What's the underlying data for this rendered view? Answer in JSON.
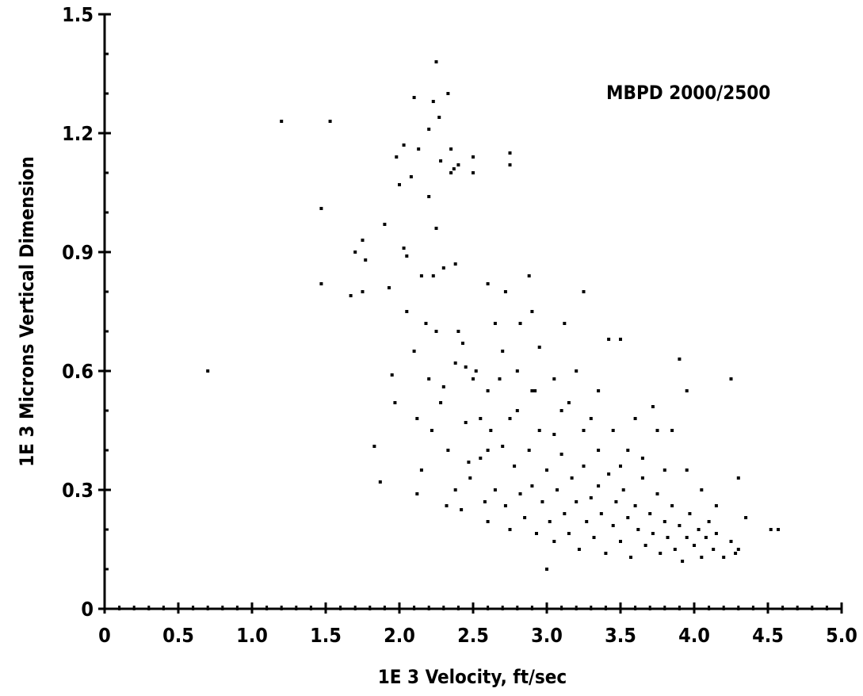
{
  "chart_data": {
    "type": "scatter",
    "xlabel": "1E 3 Velocity,  ft/sec",
    "ylabel": "1E 3 Microns Vertical Dimension",
    "annotation": "MBPD 2000/2500",
    "xlim": [
      0,
      5.0
    ],
    "ylim": [
      0,
      1.5
    ],
    "x_ticks": [
      "0",
      "0.5",
      "1.0",
      "1.5",
      "2.0",
      "2.5",
      "3.0",
      "3.5",
      "4.0",
      "4.5",
      "5.0"
    ],
    "y_ticks": [
      "0",
      "0.3",
      "0.6",
      "0.9",
      "1.2",
      "1.5"
    ],
    "grid": false,
    "point_color": "#000000",
    "points": [
      [
        0.7,
        0.6
      ],
      [
        1.2,
        1.23
      ],
      [
        1.53,
        1.23
      ],
      [
        1.47,
        1.01
      ],
      [
        1.47,
        0.82
      ],
      [
        1.7,
        0.9
      ],
      [
        1.75,
        0.93
      ],
      [
        1.77,
        0.88
      ],
      [
        1.67,
        0.79
      ],
      [
        1.75,
        0.8
      ],
      [
        1.83,
        0.41
      ],
      [
        1.87,
        0.32
      ],
      [
        1.9,
        0.97
      ],
      [
        1.93,
        0.81
      ],
      [
        1.95,
        0.59
      ],
      [
        1.97,
        0.52
      ],
      [
        1.98,
        1.14
      ],
      [
        2.0,
        1.07
      ],
      [
        2.03,
        1.17
      ],
      [
        2.03,
        0.91
      ],
      [
        2.05,
        0.89
      ],
      [
        2.08,
        1.09
      ],
      [
        2.1,
        1.29
      ],
      [
        2.12,
        0.29
      ],
      [
        2.13,
        1.16
      ],
      [
        2.15,
        0.84
      ],
      [
        2.18,
        0.72
      ],
      [
        2.2,
        1.21
      ],
      [
        2.2,
        1.04
      ],
      [
        2.23,
        1.28
      ],
      [
        2.23,
        0.84
      ],
      [
        2.25,
        1.38
      ],
      [
        2.25,
        0.96
      ],
      [
        2.27,
        1.24
      ],
      [
        2.28,
        1.13
      ],
      [
        2.3,
        0.86
      ],
      [
        2.3,
        0.56
      ],
      [
        2.32,
        0.26
      ],
      [
        2.33,
        1.3
      ],
      [
        2.35,
        1.16
      ],
      [
        2.35,
        1.1
      ],
      [
        2.37,
        1.11
      ],
      [
        2.38,
        0.87
      ],
      [
        2.38,
        0.62
      ],
      [
        2.4,
        1.12
      ],
      [
        2.43,
        0.67
      ],
      [
        2.45,
        0.61
      ],
      [
        2.47,
        0.37
      ],
      [
        2.5,
        1.14
      ],
      [
        2.5,
        1.1
      ],
      [
        2.52,
        0.6
      ],
      [
        2.55,
        0.48
      ],
      [
        2.6,
        0.82
      ],
      [
        2.65,
        0.72
      ],
      [
        2.72,
        0.8
      ],
      [
        2.75,
        1.15
      ],
      [
        2.75,
        1.12
      ],
      [
        2.82,
        0.72
      ],
      [
        2.88,
        0.84
      ],
      [
        2.9,
        0.75
      ],
      [
        2.92,
        0.55
      ],
      [
        3.0,
        0.1
      ],
      [
        3.05,
        0.44
      ],
      [
        3.12,
        0.72
      ],
      [
        3.2,
        0.6
      ],
      [
        3.25,
        0.8
      ],
      [
        3.35,
        0.55
      ],
      [
        3.42,
        0.68
      ],
      [
        3.5,
        0.68
      ],
      [
        3.6,
        0.48
      ],
      [
        3.72,
        0.51
      ],
      [
        3.75,
        0.45
      ],
      [
        3.9,
        0.63
      ],
      [
        3.95,
        0.55
      ],
      [
        4.25,
        0.58
      ],
      [
        4.3,
        0.33
      ],
      [
        4.35,
        0.23
      ],
      [
        4.52,
        0.2
      ],
      [
        4.57,
        0.2
      ],
      [
        4.3,
        0.15
      ],
      [
        2.05,
        0.75
      ],
      [
        2.1,
        0.65
      ],
      [
        2.12,
        0.48
      ],
      [
        2.15,
        0.35
      ],
      [
        2.2,
        0.58
      ],
      [
        2.22,
        0.45
      ],
      [
        2.28,
        0.52
      ],
      [
        2.33,
        0.4
      ],
      [
        2.38,
        0.3
      ],
      [
        2.42,
        0.25
      ],
      [
        2.45,
        0.47
      ],
      [
        2.48,
        0.33
      ],
      [
        2.55,
        0.38
      ],
      [
        2.58,
        0.27
      ],
      [
        2.6,
        0.22
      ],
      [
        2.62,
        0.45
      ],
      [
        2.65,
        0.3
      ],
      [
        2.68,
        0.58
      ],
      [
        2.7,
        0.41
      ],
      [
        2.72,
        0.26
      ],
      [
        2.75,
        0.2
      ],
      [
        2.78,
        0.36
      ],
      [
        2.8,
        0.5
      ],
      [
        2.82,
        0.29
      ],
      [
        2.85,
        0.23
      ],
      [
        2.88,
        0.4
      ],
      [
        2.9,
        0.31
      ],
      [
        2.93,
        0.19
      ],
      [
        2.95,
        0.45
      ],
      [
        2.97,
        0.27
      ],
      [
        3.0,
        0.35
      ],
      [
        3.02,
        0.22
      ],
      [
        3.05,
        0.17
      ],
      [
        3.07,
        0.3
      ],
      [
        3.1,
        0.39
      ],
      [
        3.12,
        0.24
      ],
      [
        3.15,
        0.19
      ],
      [
        3.17,
        0.33
      ],
      [
        3.2,
        0.27
      ],
      [
        3.22,
        0.15
      ],
      [
        3.25,
        0.36
      ],
      [
        3.27,
        0.22
      ],
      [
        3.3,
        0.28
      ],
      [
        3.32,
        0.18
      ],
      [
        3.35,
        0.31
      ],
      [
        3.37,
        0.24
      ],
      [
        3.4,
        0.14
      ],
      [
        3.42,
        0.34
      ],
      [
        3.45,
        0.21
      ],
      [
        3.47,
        0.27
      ],
      [
        3.5,
        0.17
      ],
      [
        3.52,
        0.3
      ],
      [
        3.55,
        0.23
      ],
      [
        3.57,
        0.13
      ],
      [
        3.6,
        0.26
      ],
      [
        3.62,
        0.2
      ],
      [
        3.65,
        0.33
      ],
      [
        3.67,
        0.16
      ],
      [
        3.7,
        0.24
      ],
      [
        3.72,
        0.19
      ],
      [
        3.75,
        0.29
      ],
      [
        3.77,
        0.14
      ],
      [
        3.8,
        0.22
      ],
      [
        3.82,
        0.18
      ],
      [
        3.85,
        0.26
      ],
      [
        3.87,
        0.15
      ],
      [
        3.9,
        0.21
      ],
      [
        3.92,
        0.12
      ],
      [
        3.95,
        0.18
      ],
      [
        3.97,
        0.24
      ],
      [
        4.0,
        0.16
      ],
      [
        4.03,
        0.2
      ],
      [
        4.05,
        0.13
      ],
      [
        4.08,
        0.18
      ],
      [
        4.1,
        0.22
      ],
      [
        4.13,
        0.15
      ],
      [
        4.15,
        0.19
      ],
      [
        4.2,
        0.13
      ],
      [
        4.25,
        0.17
      ],
      [
        4.28,
        0.14
      ],
      [
        2.25,
        0.7
      ],
      [
        2.4,
        0.7
      ],
      [
        2.5,
        0.58
      ],
      [
        2.6,
        0.55
      ],
      [
        2.7,
        0.65
      ],
      [
        2.8,
        0.6
      ],
      [
        2.95,
        0.66
      ],
      [
        3.05,
        0.58
      ],
      [
        3.15,
        0.52
      ],
      [
        3.3,
        0.48
      ],
      [
        3.45,
        0.45
      ],
      [
        3.55,
        0.4
      ],
      [
        3.65,
        0.38
      ],
      [
        3.8,
        0.35
      ],
      [
        3.85,
        0.45
      ],
      [
        3.95,
        0.35
      ],
      [
        4.05,
        0.3
      ],
      [
        4.15,
        0.26
      ],
      [
        3.35,
        0.4
      ],
      [
        3.5,
        0.36
      ],
      [
        3.25,
        0.45
      ],
      [
        3.1,
        0.5
      ],
      [
        2.9,
        0.55
      ],
      [
        2.75,
        0.48
      ],
      [
        2.6,
        0.4
      ]
    ]
  }
}
